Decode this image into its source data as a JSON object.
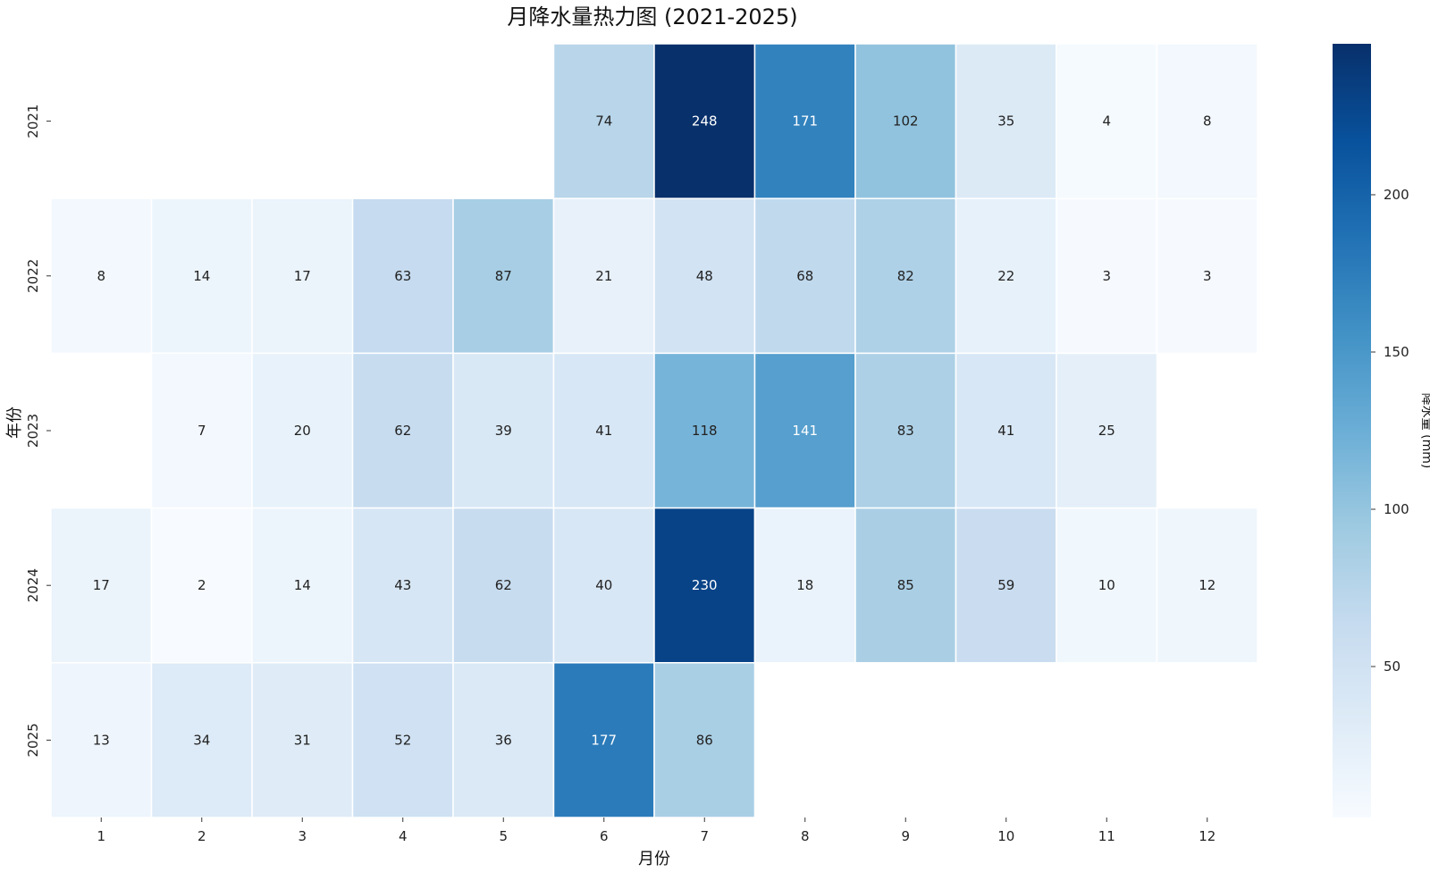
{
  "chart_data": {
    "type": "heatmap",
    "title": "月降水量热力图 (2021-2025)",
    "xlabel": "月份",
    "ylabel": "年份",
    "x_categories": [
      "1",
      "2",
      "3",
      "4",
      "5",
      "6",
      "7",
      "8",
      "9",
      "10",
      "11",
      "12"
    ],
    "y_categories": [
      "2021",
      "2022",
      "2023",
      "2024",
      "2025"
    ],
    "values": [
      [
        null,
        null,
        null,
        null,
        null,
        74,
        248,
        171,
        102,
        35,
        4,
        8
      ],
      [
        8,
        14,
        17,
        63,
        87,
        21,
        48,
        68,
        82,
        22,
        3,
        3
      ],
      [
        null,
        7,
        20,
        62,
        39,
        41,
        118,
        141,
        83,
        41,
        25,
        null
      ],
      [
        17,
        2,
        14,
        43,
        62,
        40,
        230,
        18,
        85,
        59,
        10,
        12
      ],
      [
        13,
        34,
        31,
        52,
        36,
        177,
        86,
        null,
        null,
        null,
        null,
        null
      ]
    ],
    "colormap": "Blues",
    "value_range": [
      2,
      248
    ],
    "colorbar": {
      "label": "降水量 (mm)",
      "ticks": [
        "50",
        "100",
        "150",
        "200"
      ]
    },
    "grid": false
  }
}
